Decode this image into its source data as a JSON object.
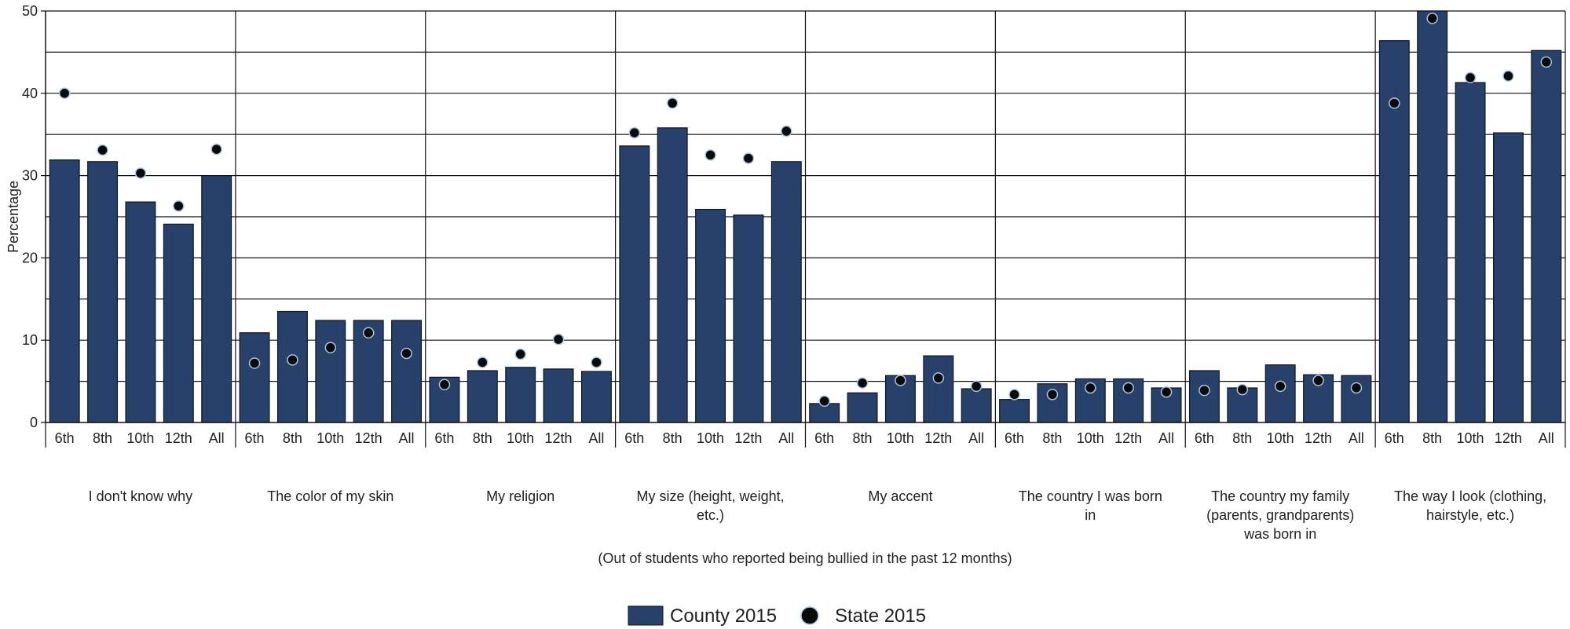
{
  "colors": {
    "county_bar": "#27416a",
    "state_dot": "#0a0a0a",
    "dot_stroke": "#aac4e0",
    "grid": "#111111"
  },
  "chart_data": {
    "type": "bar",
    "ylabel": "Percentage",
    "xlabel": "(Out of students who reported being bullied in the past 12 months)",
    "ylim": [
      0,
      50
    ],
    "yticks": [
      0,
      10,
      20,
      30,
      40,
      50
    ],
    "grid": true,
    "legend_position": "bottom",
    "sub_categories": [
      "6th",
      "8th",
      "10th",
      "12th",
      "All"
    ],
    "groups": [
      {
        "label": [
          "I don't know why"
        ]
      },
      {
        "label": [
          "The color of my skin"
        ]
      },
      {
        "label": [
          "My religion"
        ]
      },
      {
        "label": [
          "My size (height, weight,",
          "etc.)"
        ]
      },
      {
        "label": [
          "My accent"
        ]
      },
      {
        "label": [
          "The country I was born",
          "in"
        ]
      },
      {
        "label": [
          "The country my family",
          "(parents, grandparents)",
          "was born in"
        ]
      },
      {
        "label": [
          "The way I look (clothing,",
          "hairstyle, etc.)"
        ]
      }
    ],
    "series": [
      {
        "name": "County 2015",
        "kind": "bar",
        "values": [
          [
            31.9,
            31.7,
            26.8,
            24.1,
            30.0
          ],
          [
            10.9,
            13.5,
            12.4,
            12.4,
            12.4
          ],
          [
            5.5,
            6.3,
            6.7,
            6.5,
            6.2
          ],
          [
            33.6,
            35.8,
            25.9,
            25.2,
            31.7
          ],
          [
            2.3,
            3.6,
            5.7,
            8.1,
            4.1
          ],
          [
            2.8,
            4.7,
            5.3,
            5.3,
            4.2
          ],
          [
            6.3,
            4.2,
            7.0,
            5.8,
            5.7
          ],
          [
            46.4,
            50.0,
            41.3,
            35.2,
            45.2
          ]
        ]
      },
      {
        "name": "State 2015",
        "kind": "point",
        "values": [
          [
            40.0,
            33.1,
            30.3,
            26.3,
            33.2
          ],
          [
            7.2,
            7.6,
            9.1,
            10.9,
            8.4
          ],
          [
            4.6,
            7.3,
            8.3,
            10.1,
            7.3
          ],
          [
            35.2,
            38.8,
            32.5,
            32.1,
            35.4
          ],
          [
            2.6,
            4.8,
            5.1,
            5.4,
            4.4
          ],
          [
            3.4,
            3.4,
            4.2,
            4.2,
            3.7
          ],
          [
            3.9,
            4.0,
            4.4,
            5.1,
            4.2
          ],
          [
            38.8,
            49.1,
            41.9,
            42.1,
            43.8
          ]
        ]
      }
    ]
  }
}
